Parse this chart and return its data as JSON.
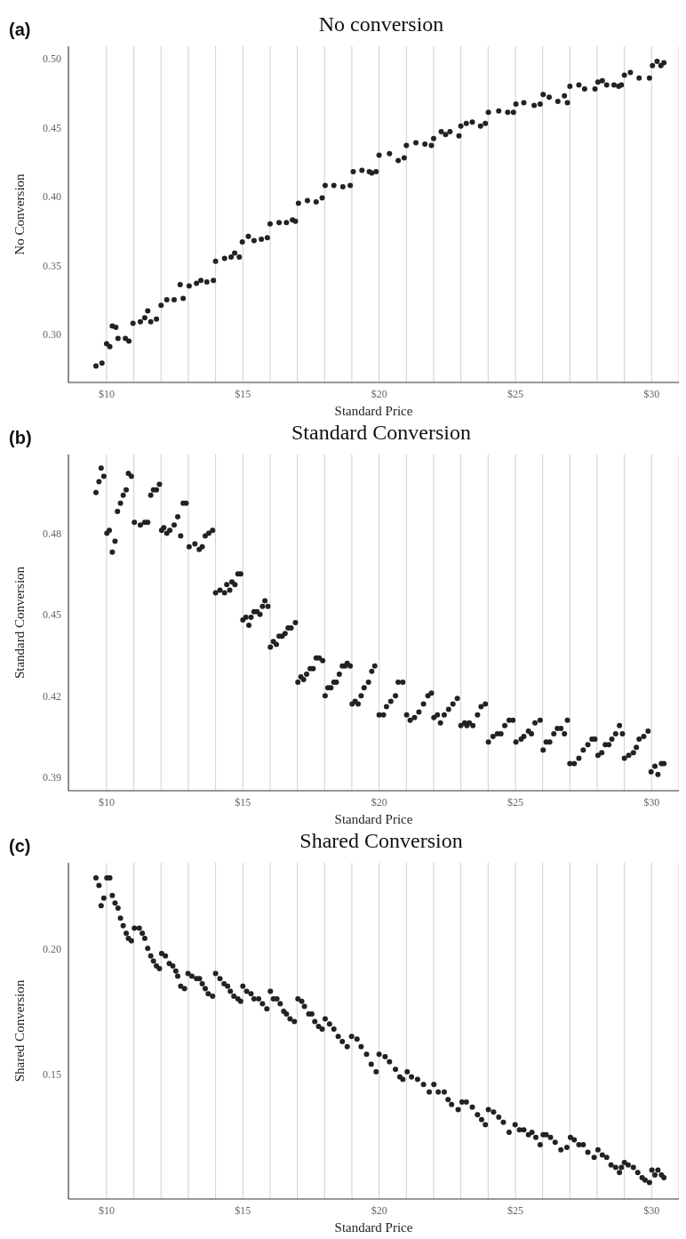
{
  "chart_data": [
    {
      "type": "scatter",
      "title": "No conversion",
      "xlabel": "Standard Price",
      "ylabel": "No Conversion",
      "annotations": [
        "(a)"
      ],
      "marker": "circle",
      "grid": "x",
      "xlim": [
        8.6,
        31.0
      ],
      "xticks": [
        {
          "value": 10,
          "label": "$10"
        },
        {
          "value": 11,
          "label": null
        },
        {
          "value": 12,
          "label": null
        },
        {
          "value": 13,
          "label": null
        },
        {
          "value": 14,
          "label": null
        },
        {
          "value": 15,
          "label": "$15"
        },
        {
          "value": 16,
          "label": null
        },
        {
          "value": 17,
          "label": null
        },
        {
          "value": 18,
          "label": null
        },
        {
          "value": 19,
          "label": null
        },
        {
          "value": 20,
          "label": "$20"
        },
        {
          "value": 21,
          "label": null
        },
        {
          "value": 22,
          "label": null
        },
        {
          "value": 23,
          "label": null
        },
        {
          "value": 24,
          "label": null
        },
        {
          "value": 25,
          "label": "$25"
        },
        {
          "value": 26,
          "label": null
        },
        {
          "value": 27,
          "label": null
        },
        {
          "value": 28,
          "label": null
        },
        {
          "value": 29,
          "label": null
        },
        {
          "value": 30,
          "label": "$30"
        }
      ],
      "ylim": [
        0.265,
        0.509
      ],
      "yticks": [
        {
          "value": 0.3,
          "label": "0.30"
        },
        0.35,
        {
          "value": 0.4,
          "label": "0.40"
        },
        0.45,
        {
          "value": 0.5,
          "label": "0.50"
        }
      ],
      "x": [
        9.61,
        9.83,
        10.0,
        10.12,
        10.21,
        10.34,
        10.42,
        10.69,
        10.82,
        10.97,
        11.24,
        11.4,
        11.51,
        11.62,
        11.83,
        12.0,
        12.21,
        12.48,
        12.7,
        12.81,
        13.03,
        13.3,
        13.46,
        13.68,
        13.92,
        14.0,
        14.33,
        14.57,
        14.7,
        14.87,
        14.98,
        15.2,
        15.41,
        15.68,
        15.9,
        16.0,
        16.33,
        16.6,
        16.82,
        16.93,
        17.04,
        17.37,
        17.69,
        17.91,
        18.02,
        18.34,
        18.67,
        18.94,
        19.05,
        19.37,
        19.64,
        19.73,
        19.89,
        20.0,
        20.38,
        20.7,
        20.92,
        21.0,
        21.35,
        21.68,
        21.92,
        22.0,
        22.28,
        22.44,
        22.6,
        22.93,
        23.0,
        23.2,
        23.42,
        23.72,
        23.9,
        24.01,
        24.39,
        24.72,
        24.93,
        25.02,
        25.31,
        25.69,
        25.91,
        26.02,
        26.24,
        26.56,
        26.8,
        26.91,
        27.0,
        27.33,
        27.54,
        27.92,
        28.03,
        28.19,
        28.35,
        28.62,
        28.79,
        28.89,
        29.0,
        29.22,
        29.54,
        29.92,
        30.03,
        30.2,
        30.34,
        30.45
      ],
      "series": [
        {
          "color": "#222222",
          "values": [
            0.277,
            0.279,
            0.293,
            0.291,
            0.306,
            0.305,
            0.297,
            0.297,
            0.295,
            0.308,
            0.309,
            0.312,
            0.317,
            0.309,
            0.311,
            0.321,
            0.325,
            0.325,
            0.336,
            0.326,
            0.335,
            0.337,
            0.339,
            0.338,
            0.339,
            0.353,
            0.355,
            0.356,
            0.359,
            0.356,
            0.367,
            0.371,
            0.368,
            0.369,
            0.37,
            0.38,
            0.381,
            0.381,
            0.383,
            0.382,
            0.395,
            0.397,
            0.396,
            0.399,
            0.408,
            0.408,
            0.407,
            0.408,
            0.418,
            0.419,
            0.418,
            0.417,
            0.418,
            0.43,
            0.431,
            0.426,
            0.428,
            0.437,
            0.439,
            0.438,
            0.437,
            0.442,
            0.447,
            0.445,
            0.447,
            0.444,
            0.451,
            0.453,
            0.454,
            0.451,
            0.453,
            0.461,
            0.462,
            0.461,
            0.461,
            0.467,
            0.468,
            0.466,
            0.467,
            0.474,
            0.472,
            0.469,
            0.473,
            0.468,
            0.48,
            0.481,
            0.478,
            0.478,
            0.483,
            0.484,
            0.481,
            0.481,
            0.48,
            0.481,
            0.488,
            0.49,
            0.486,
            0.486,
            0.495,
            0.498,
            0.495,
            0.497
          ]
        }
      ]
    },
    {
      "type": "scatter",
      "title": "Standard Conversion",
      "xlabel": "Standard Price",
      "ylabel": "Standard Conversion",
      "annotations": [
        "(b)"
      ],
      "marker": "circle",
      "grid": "x",
      "xlim": [
        8.6,
        31.0
      ],
      "xticks": [
        {
          "value": 10,
          "label": "$10"
        },
        {
          "value": 11,
          "label": null
        },
        {
          "value": 12,
          "label": null
        },
        {
          "value": 13,
          "label": null
        },
        {
          "value": 14,
          "label": null
        },
        {
          "value": 15,
          "label": "$15"
        },
        {
          "value": 16,
          "label": null
        },
        {
          "value": 17,
          "label": null
        },
        {
          "value": 18,
          "label": null
        },
        {
          "value": 19,
          "label": null
        },
        {
          "value": 20,
          "label": "$20"
        },
        {
          "value": 21,
          "label": null
        },
        {
          "value": 22,
          "label": null
        },
        {
          "value": 23,
          "label": null
        },
        {
          "value": 24,
          "label": null
        },
        {
          "value": 25,
          "label": "$25"
        },
        {
          "value": 26,
          "label": null
        },
        {
          "value": 27,
          "label": null
        },
        {
          "value": 28,
          "label": null
        },
        {
          "value": 29,
          "label": null
        },
        {
          "value": 30,
          "label": "$30"
        }
      ],
      "ylim": [
        0.385,
        0.509
      ],
      "yticks": [
        0.39,
        0.42,
        0.45,
        0.48
      ],
      "x": [
        9.61,
        9.72,
        9.8,
        9.9,
        10.01,
        10.1,
        10.21,
        10.31,
        10.4,
        10.51,
        10.61,
        10.72,
        10.8,
        10.91,
        11.02,
        11.24,
        11.4,
        11.51,
        11.62,
        11.72,
        11.83,
        11.94,
        12.02,
        12.1,
        12.21,
        12.32,
        12.48,
        12.61,
        12.72,
        12.81,
        12.92,
        13.03,
        13.24,
        13.4,
        13.51,
        13.62,
        13.75,
        13.89,
        14.0,
        14.16,
        14.33,
        14.41,
        14.52,
        14.6,
        14.71,
        14.82,
        14.92,
        15.0,
        15.11,
        15.22,
        15.3,
        15.41,
        15.52,
        15.63,
        15.72,
        15.81,
        15.92,
        16.01,
        16.12,
        16.23,
        16.33,
        16.44,
        16.55,
        16.66,
        16.77,
        16.93,
        17.02,
        17.13,
        17.23,
        17.34,
        17.47,
        17.58,
        17.69,
        17.8,
        17.93,
        18.02,
        18.12,
        18.23,
        18.34,
        18.43,
        18.54,
        18.65,
        18.75,
        18.83,
        18.94,
        19.01,
        19.12,
        19.23,
        19.34,
        19.45,
        19.61,
        19.73,
        19.84,
        20.0,
        20.16,
        20.27,
        20.43,
        20.6,
        20.7,
        20.87,
        21.01,
        21.14,
        21.3,
        21.46,
        21.63,
        21.79,
        21.92,
        22.01,
        22.14,
        22.25,
        22.39,
        22.55,
        22.71,
        22.87,
        23.0,
        23.14,
        23.22,
        23.31,
        23.44,
        23.61,
        23.74,
        23.9,
        24.01,
        24.18,
        24.34,
        24.47,
        24.61,
        24.77,
        24.91,
        25.02,
        25.21,
        25.31,
        25.48,
        25.59,
        25.72,
        25.91,
        26.02,
        26.13,
        26.26,
        26.41,
        26.54,
        26.67,
        26.8,
        26.91,
        27.0,
        27.16,
        27.33,
        27.49,
        27.66,
        27.81,
        27.92,
        28.03,
        28.17,
        28.3,
        28.43,
        28.54,
        28.68,
        28.82,
        28.93,
        29.0,
        29.16,
        29.33,
        29.44,
        29.54,
        29.71,
        29.87,
        29.98,
        30.12,
        30.23,
        30.36,
        30.45
      ],
      "series": [
        {
          "color": "#222222",
          "values": [
            0.495,
            0.499,
            0.504,
            0.501,
            0.48,
            0.481,
            0.473,
            0.477,
            0.488,
            0.491,
            0.494,
            0.496,
            0.502,
            0.501,
            0.484,
            0.483,
            0.484,
            0.484,
            0.494,
            0.496,
            0.496,
            0.498,
            0.481,
            0.482,
            0.48,
            0.481,
            0.483,
            0.486,
            0.479,
            0.491,
            0.491,
            0.475,
            0.476,
            0.474,
            0.475,
            0.479,
            0.48,
            0.481,
            0.458,
            0.459,
            0.458,
            0.461,
            0.459,
            0.462,
            0.461,
            0.465,
            0.465,
            0.448,
            0.449,
            0.446,
            0.449,
            0.451,
            0.451,
            0.45,
            0.453,
            0.455,
            0.453,
            0.438,
            0.44,
            0.439,
            0.442,
            0.442,
            0.443,
            0.445,
            0.445,
            0.447,
            0.425,
            0.427,
            0.426,
            0.428,
            0.43,
            0.43,
            0.434,
            0.434,
            0.433,
            0.42,
            0.423,
            0.423,
            0.425,
            0.425,
            0.428,
            0.431,
            0.431,
            0.432,
            0.431,
            0.417,
            0.418,
            0.417,
            0.42,
            0.423,
            0.425,
            0.429,
            0.431,
            0.413,
            0.413,
            0.416,
            0.418,
            0.42,
            0.425,
            0.425,
            0.413,
            0.411,
            0.412,
            0.414,
            0.417,
            0.42,
            0.421,
            0.412,
            0.413,
            0.41,
            0.413,
            0.415,
            0.417,
            0.419,
            0.409,
            0.41,
            0.409,
            0.41,
            0.409,
            0.413,
            0.416,
            0.417,
            0.403,
            0.405,
            0.406,
            0.406,
            0.409,
            0.411,
            0.411,
            0.403,
            0.404,
            0.405,
            0.407,
            0.406,
            0.41,
            0.411,
            0.4,
            0.403,
            0.403,
            0.406,
            0.408,
            0.408,
            0.406,
            0.411,
            0.395,
            0.395,
            0.397,
            0.4,
            0.402,
            0.404,
            0.404,
            0.398,
            0.399,
            0.402,
            0.402,
            0.404,
            0.406,
            0.409,
            0.406,
            0.397,
            0.398,
            0.399,
            0.401,
            0.404,
            0.405,
            0.407,
            0.392,
            0.394,
            0.391,
            0.395,
            0.395
          ]
        }
      ]
    },
    {
      "type": "scatter",
      "title": "Shared Conversion",
      "xlabel": "Standard Price",
      "ylabel": "Shared Conversion",
      "annotations": [
        "(c)"
      ],
      "marker": "circle",
      "grid": "x",
      "xlim": [
        8.6,
        31.0
      ],
      "xticks": [
        {
          "value": 10,
          "label": "$10"
        },
        {
          "value": 11,
          "label": null
        },
        {
          "value": 12,
          "label": null
        },
        {
          "value": 13,
          "label": null
        },
        {
          "value": 14,
          "label": null
        },
        {
          "value": 15,
          "label": "$15"
        },
        {
          "value": 16,
          "label": null
        },
        {
          "value": 17,
          "label": null
        },
        {
          "value": 18,
          "label": null
        },
        {
          "value": 19,
          "label": null
        },
        {
          "value": 20,
          "label": "$20"
        },
        {
          "value": 21,
          "label": null
        },
        {
          "value": 22,
          "label": null
        },
        {
          "value": 23,
          "label": null
        },
        {
          "value": 24,
          "label": null
        },
        {
          "value": 25,
          "label": "$25"
        },
        {
          "value": 26,
          "label": null
        },
        {
          "value": 27,
          "label": null
        },
        {
          "value": 28,
          "label": null
        },
        {
          "value": 29,
          "label": null
        },
        {
          "value": 30,
          "label": "$30"
        }
      ],
      "ylim": [
        0.1005,
        0.234
      ],
      "yticks": [
        0.15,
        {
          "value": 0.2,
          "label": "0.20"
        }
      ],
      "x": [
        9.61,
        9.72,
        9.8,
        9.9,
        10.01,
        10.12,
        10.21,
        10.31,
        10.42,
        10.51,
        10.61,
        10.72,
        10.8,
        10.91,
        11.02,
        11.2,
        11.31,
        11.4,
        11.51,
        11.62,
        11.72,
        11.83,
        11.94,
        12.02,
        12.16,
        12.3,
        12.43,
        12.54,
        12.61,
        12.72,
        12.86,
        12.99,
        13.13,
        13.3,
        13.41,
        13.51,
        13.62,
        13.73,
        13.89,
        14.0,
        14.16,
        14.31,
        14.44,
        14.54,
        14.67,
        14.82,
        14.92,
        15.0,
        15.14,
        15.3,
        15.41,
        15.58,
        15.72,
        15.88,
        16.01,
        16.12,
        16.25,
        16.37,
        16.5,
        16.6,
        16.73,
        16.89,
        17.02,
        17.16,
        17.26,
        17.42,
        17.53,
        17.64,
        17.78,
        17.91,
        18.02,
        18.18,
        18.34,
        18.5,
        18.65,
        18.83,
        18.99,
        19.19,
        19.34,
        19.54,
        19.71,
        19.89,
        20.0,
        20.22,
        20.38,
        20.6,
        20.76,
        20.87,
        21.03,
        21.19,
        21.41,
        21.63,
        21.84,
        22.01,
        22.17,
        22.39,
        22.53,
        22.66,
        22.9,
        23.04,
        23.2,
        23.42,
        23.61,
        23.76,
        23.9,
        24.01,
        24.2,
        24.39,
        24.56,
        24.77,
        24.99,
        25.15,
        25.31,
        25.48,
        25.61,
        25.75,
        25.91,
        26.02,
        26.13,
        26.29,
        26.46,
        26.67,
        26.89,
        27.02,
        27.16,
        27.33,
        27.49,
        27.66,
        27.89,
        28.03,
        28.19,
        28.35,
        28.51,
        28.68,
        28.82,
        28.89,
        29.0,
        29.14,
        29.33,
        29.49,
        29.65,
        29.76,
        29.92,
        30.01,
        30.12,
        30.23,
        30.36,
        30.45
      ],
      "series": [
        {
          "color": "#222222",
          "values": [
            0.228,
            0.225,
            0.217,
            0.22,
            0.228,
            0.228,
            0.221,
            0.218,
            0.216,
            0.212,
            0.209,
            0.206,
            0.204,
            0.203,
            0.208,
            0.208,
            0.206,
            0.204,
            0.2,
            0.197,
            0.195,
            0.193,
            0.192,
            0.198,
            0.197,
            0.194,
            0.193,
            0.191,
            0.189,
            0.185,
            0.184,
            0.19,
            0.189,
            0.188,
            0.188,
            0.186,
            0.184,
            0.182,
            0.181,
            0.19,
            0.188,
            0.186,
            0.185,
            0.183,
            0.181,
            0.18,
            0.179,
            0.185,
            0.183,
            0.182,
            0.18,
            0.18,
            0.178,
            0.176,
            0.183,
            0.18,
            0.18,
            0.178,
            0.175,
            0.174,
            0.172,
            0.171,
            0.18,
            0.179,
            0.177,
            0.174,
            0.174,
            0.171,
            0.169,
            0.168,
            0.172,
            0.17,
            0.168,
            0.165,
            0.163,
            0.161,
            0.165,
            0.164,
            0.161,
            0.158,
            0.154,
            0.151,
            0.158,
            0.157,
            0.155,
            0.152,
            0.149,
            0.148,
            0.151,
            0.149,
            0.148,
            0.146,
            0.143,
            0.146,
            0.143,
            0.143,
            0.14,
            0.138,
            0.136,
            0.139,
            0.139,
            0.137,
            0.134,
            0.132,
            0.13,
            0.136,
            0.135,
            0.133,
            0.131,
            0.127,
            0.13,
            0.128,
            0.128,
            0.126,
            0.127,
            0.125,
            0.122,
            0.126,
            0.126,
            0.125,
            0.123,
            0.12,
            0.121,
            0.125,
            0.124,
            0.122,
            0.122,
            0.119,
            0.117,
            0.12,
            0.118,
            0.117,
            0.114,
            0.113,
            0.111,
            0.113,
            0.115,
            0.114,
            0.113,
            0.111,
            0.109,
            0.108,
            0.107,
            0.112,
            0.11,
            0.112,
            0.11,
            0.109
          ]
        }
      ]
    }
  ]
}
